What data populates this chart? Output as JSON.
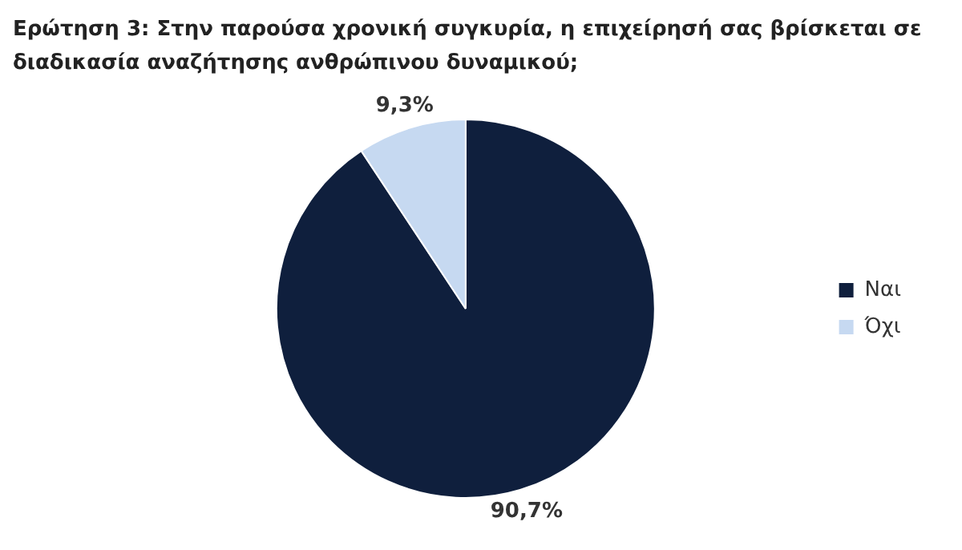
{
  "chart_data": {
    "type": "pie",
    "title": "Ερώτηση 3: Στην παρούσα χρονική συγκυρία, η επιχείρησή σας βρίσκεται σε διαδικασία αναζήτησης ανθρώπινου δυναμικού;",
    "categories": [
      "Ναι",
      "Όχι"
    ],
    "values": [
      90.7,
      9.3
    ],
    "colors": [
      "#0f1f3d",
      "#c6d9f1"
    ],
    "value_labels": [
      "90,7%",
      "9,3%"
    ],
    "legend": "right"
  }
}
